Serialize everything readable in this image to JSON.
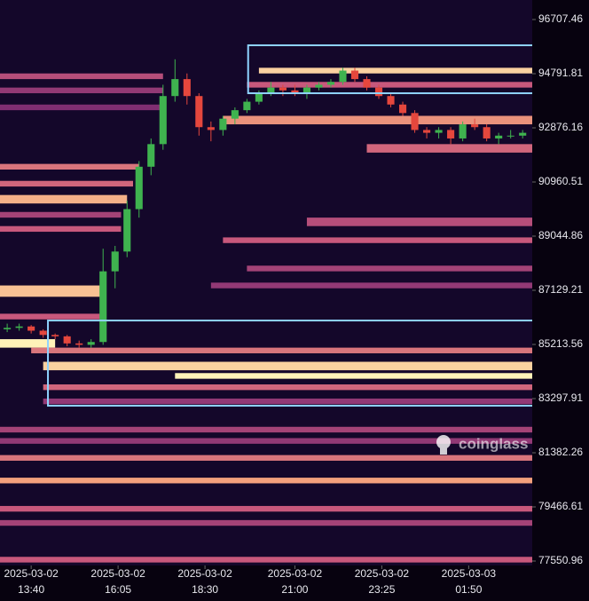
{
  "chart_data": {
    "type": "candlestick",
    "watermark": "coinglass",
    "xlim": [
      "2025-03-02 12:48",
      "2025-03-03 03:36"
    ],
    "ylim": [
      77394,
      97398
    ],
    "yticks": [
      96707.46,
      94791.81,
      92876.16,
      90960.51,
      89044.86,
      87129.21,
      85213.56,
      83297.91,
      81382.26,
      79466.61,
      77550.96
    ],
    "xticks": [
      {
        "value": "2025-03-02 13:40",
        "label": [
          "2025-03-02",
          "13:40"
        ]
      },
      {
        "value": "2025-03-02 16:05",
        "label": [
          "2025-03-02",
          "16:05"
        ]
      },
      {
        "value": "2025-03-02 18:30",
        "label": [
          "2025-03-02",
          "18:30"
        ]
      },
      {
        "value": "2025-03-02 21:00",
        "label": [
          "2025-03-02",
          "21:00"
        ]
      },
      {
        "value": "2025-03-02 23:25",
        "label": [
          "2025-03-02",
          "23:25"
        ]
      },
      {
        "value": "2025-03-03 01:50",
        "label": [
          "2025-03-03",
          "01:50"
        ]
      }
    ],
    "up_color": "#3fb34f",
    "down_color": "#e5473d",
    "zone_color": "#8fd3ff",
    "colorscale": [
      "#2a0f4a",
      "#6e2470",
      "#c8587c",
      "#f3a07c",
      "#fff2b8"
    ],
    "x": [
      "2025-03-02 13:00",
      "2025-03-02 13:20",
      "2025-03-02 13:40",
      "2025-03-02 14:00",
      "2025-03-02 14:20",
      "2025-03-02 14:40",
      "2025-03-02 15:00",
      "2025-03-02 15:20",
      "2025-03-02 15:40",
      "2025-03-02 16:00",
      "2025-03-02 16:20",
      "2025-03-02 16:40",
      "2025-03-02 17:00",
      "2025-03-02 17:20",
      "2025-03-02 17:40",
      "2025-03-02 18:00",
      "2025-03-02 18:20",
      "2025-03-02 18:40",
      "2025-03-02 19:00",
      "2025-03-02 19:20",
      "2025-03-02 19:40",
      "2025-03-02 20:00",
      "2025-03-02 20:20",
      "2025-03-02 20:40",
      "2025-03-02 21:00",
      "2025-03-02 21:20",
      "2025-03-02 21:40",
      "2025-03-02 22:00",
      "2025-03-02 22:20",
      "2025-03-02 22:40",
      "2025-03-02 23:00",
      "2025-03-02 23:20",
      "2025-03-02 23:40",
      "2025-03-03 00:00",
      "2025-03-03 00:20",
      "2025-03-03 00:40",
      "2025-03-03 01:00",
      "2025-03-03 01:20",
      "2025-03-03 01:40",
      "2025-03-03 02:00",
      "2025-03-03 02:20",
      "2025-03-03 02:40",
      "2025-03-03 03:00",
      "2025-03-03 03:20"
    ],
    "open": [
      85750,
      85800,
      85850,
      85700,
      85550,
      85500,
      85250,
      85200,
      85300,
      87800,
      88500,
      90000,
      91500,
      92300,
      94000,
      94600,
      94000,
      92900,
      92800,
      93200,
      93500,
      93800,
      94100,
      94300,
      94200,
      94100,
      94300,
      94400,
      94500,
      94900,
      94600,
      94300,
      94000,
      93700,
      93400,
      92800,
      92700,
      92800,
      92500,
      93000,
      92900,
      92500,
      92600,
      92600
    ],
    "high": [
      85950,
      85950,
      85900,
      85750,
      85600,
      85550,
      85350,
      85400,
      88600,
      88700,
      90300,
      91700,
      92500,
      94400,
      95300,
      94800,
      94100,
      93100,
      93300,
      93600,
      93900,
      94200,
      94500,
      94400,
      94400,
      94400,
      94500,
      94600,
      95000,
      95000,
      94700,
      94400,
      94100,
      93800,
      93500,
      92900,
      92900,
      92900,
      93100,
      93200,
      93000,
      92700,
      92800,
      92800
    ],
    "low": [
      85650,
      85700,
      85600,
      85450,
      85400,
      85150,
      85100,
      85100,
      85200,
      87200,
      88300,
      89700,
      91200,
      92100,
      93800,
      93700,
      92600,
      92400,
      92600,
      93000,
      93400,
      93700,
      94000,
      94000,
      94000,
      93900,
      94200,
      94300,
      94400,
      94500,
      94200,
      93900,
      93600,
      93300,
      92700,
      92500,
      92500,
      92300,
      92400,
      92800,
      92400,
      92300,
      92500,
      92500
    ],
    "close": [
      85800,
      85850,
      85700,
      85550,
      85500,
      85250,
      85200,
      85300,
      87800,
      88500,
      90000,
      91500,
      92300,
      94000,
      94600,
      94000,
      92900,
      92800,
      93200,
      93500,
      93800,
      94100,
      94300,
      94200,
      94100,
      94300,
      94400,
      94500,
      94900,
      94600,
      94300,
      94000,
      93700,
      93400,
      92800,
      92700,
      92800,
      92500,
      93000,
      92900,
      92500,
      92600,
      92600,
      92700
    ],
    "heat_bands": [
      {
        "low": 94600,
        "high": 94800,
        "from": "2025-03-02 12:48",
        "to": "2025-03-02 17:20",
        "intensity": 0.45
      },
      {
        "low": 94100,
        "high": 94300,
        "from": "2025-03-02 12:48",
        "to": "2025-03-02 17:20",
        "intensity": 0.35
      },
      {
        "low": 93500,
        "high": 93700,
        "from": "2025-03-02 12:48",
        "to": "2025-03-02 17:20",
        "intensity": 0.3
      },
      {
        "low": 91400,
        "high": 91600,
        "from": "2025-03-02 12:48",
        "to": "2025-03-02 16:40",
        "intensity": 0.6
      },
      {
        "low": 90800,
        "high": 91000,
        "from": "2025-03-02 12:48",
        "to": "2025-03-02 16:30",
        "intensity": 0.55
      },
      {
        "low": 90200,
        "high": 90500,
        "from": "2025-03-02 12:48",
        "to": "2025-03-02 16:20",
        "intensity": 0.8
      },
      {
        "low": 89700,
        "high": 89900,
        "from": "2025-03-02 12:48",
        "to": "2025-03-02 16:10",
        "intensity": 0.4
      },
      {
        "low": 89200,
        "high": 89400,
        "from": "2025-03-02 12:48",
        "to": "2025-03-02 16:10",
        "intensity": 0.5
      },
      {
        "low": 86900,
        "high": 87300,
        "from": "2025-03-02 12:48",
        "to": "2025-03-02 15:40",
        "intensity": 0.85
      },
      {
        "low": 86100,
        "high": 86300,
        "from": "2025-03-02 12:48",
        "to": "2025-03-02 15:40",
        "intensity": 0.5
      },
      {
        "low": 85100,
        "high": 85400,
        "from": "2025-03-02 12:48",
        "to": "2025-03-02 14:20",
        "intensity": 1.0
      },
      {
        "low": 94800,
        "high": 95000,
        "from": "2025-03-02 20:00",
        "to": "2025-03-03 03:36",
        "intensity": 0.9
      },
      {
        "low": 94300,
        "high": 94500,
        "from": "2025-03-02 19:40",
        "to": "2025-03-03 03:36",
        "intensity": 0.5
      },
      {
        "low": 93000,
        "high": 93300,
        "from": "2025-03-02 19:00",
        "to": "2025-03-03 03:36",
        "intensity": 0.7
      },
      {
        "low": 92000,
        "high": 92300,
        "from": "2025-03-02 23:00",
        "to": "2025-03-03 03:36",
        "intensity": 0.55
      },
      {
        "low": 89400,
        "high": 89700,
        "from": "2025-03-02 21:20",
        "to": "2025-03-03 03:36",
        "intensity": 0.45
      },
      {
        "low": 88800,
        "high": 89000,
        "from": "2025-03-02 19:00",
        "to": "2025-03-03 03:36",
        "intensity": 0.5
      },
      {
        "low": 87800,
        "high": 88000,
        "from": "2025-03-02 19:40",
        "to": "2025-03-03 03:36",
        "intensity": 0.4
      },
      {
        "low": 87200,
        "high": 87400,
        "from": "2025-03-02 18:40",
        "to": "2025-03-03 03:36",
        "intensity": 0.35
      },
      {
        "low": 84900,
        "high": 85100,
        "from": "2025-03-02 13:40",
        "to": "2025-03-03 03:36",
        "intensity": 0.6
      },
      {
        "low": 84300,
        "high": 84600,
        "from": "2025-03-02 14:00",
        "to": "2025-03-03 03:36",
        "intensity": 0.9
      },
      {
        "low": 84000,
        "high": 84200,
        "from": "2025-03-02 17:40",
        "to": "2025-03-03 03:36",
        "intensity": 1.0
      },
      {
        "low": 83600,
        "high": 83800,
        "from": "2025-03-02 14:00",
        "to": "2025-03-03 03:36",
        "intensity": 0.55
      },
      {
        "low": 83100,
        "high": 83300,
        "from": "2025-03-02 14:00",
        "to": "2025-03-03 03:36",
        "intensity": 0.35
      },
      {
        "low": 82100,
        "high": 82300,
        "from": "2025-03-02 12:48",
        "to": "2025-03-03 03:36",
        "intensity": 0.4
      },
      {
        "low": 81700,
        "high": 81900,
        "from": "2025-03-02 12:48",
        "to": "2025-03-03 03:36",
        "intensity": 0.35
      },
      {
        "low": 81100,
        "high": 81300,
        "from": "2025-03-02 12:48",
        "to": "2025-03-03 03:36",
        "intensity": 0.6
      },
      {
        "low": 80300,
        "high": 80500,
        "from": "2025-03-02 12:48",
        "to": "2025-03-03 03:36",
        "intensity": 0.75
      },
      {
        "low": 79300,
        "high": 79500,
        "from": "2025-03-02 12:48",
        "to": "2025-03-03 03:36",
        "intensity": 0.5
      },
      {
        "low": 78800,
        "high": 79000,
        "from": "2025-03-02 12:48",
        "to": "2025-03-03 03:36",
        "intensity": 0.4
      },
      {
        "low": 77500,
        "high": 77700,
        "from": "2025-03-02 12:48",
        "to": "2025-03-03 03:36",
        "intensity": 0.5
      }
    ],
    "highlight_zones": [
      {
        "from": "2025-03-02 19:42",
        "low": 94100,
        "high": 95796
      },
      {
        "from": "2025-03-02 14:08",
        "low": 83046,
        "high": 86060
      }
    ]
  }
}
